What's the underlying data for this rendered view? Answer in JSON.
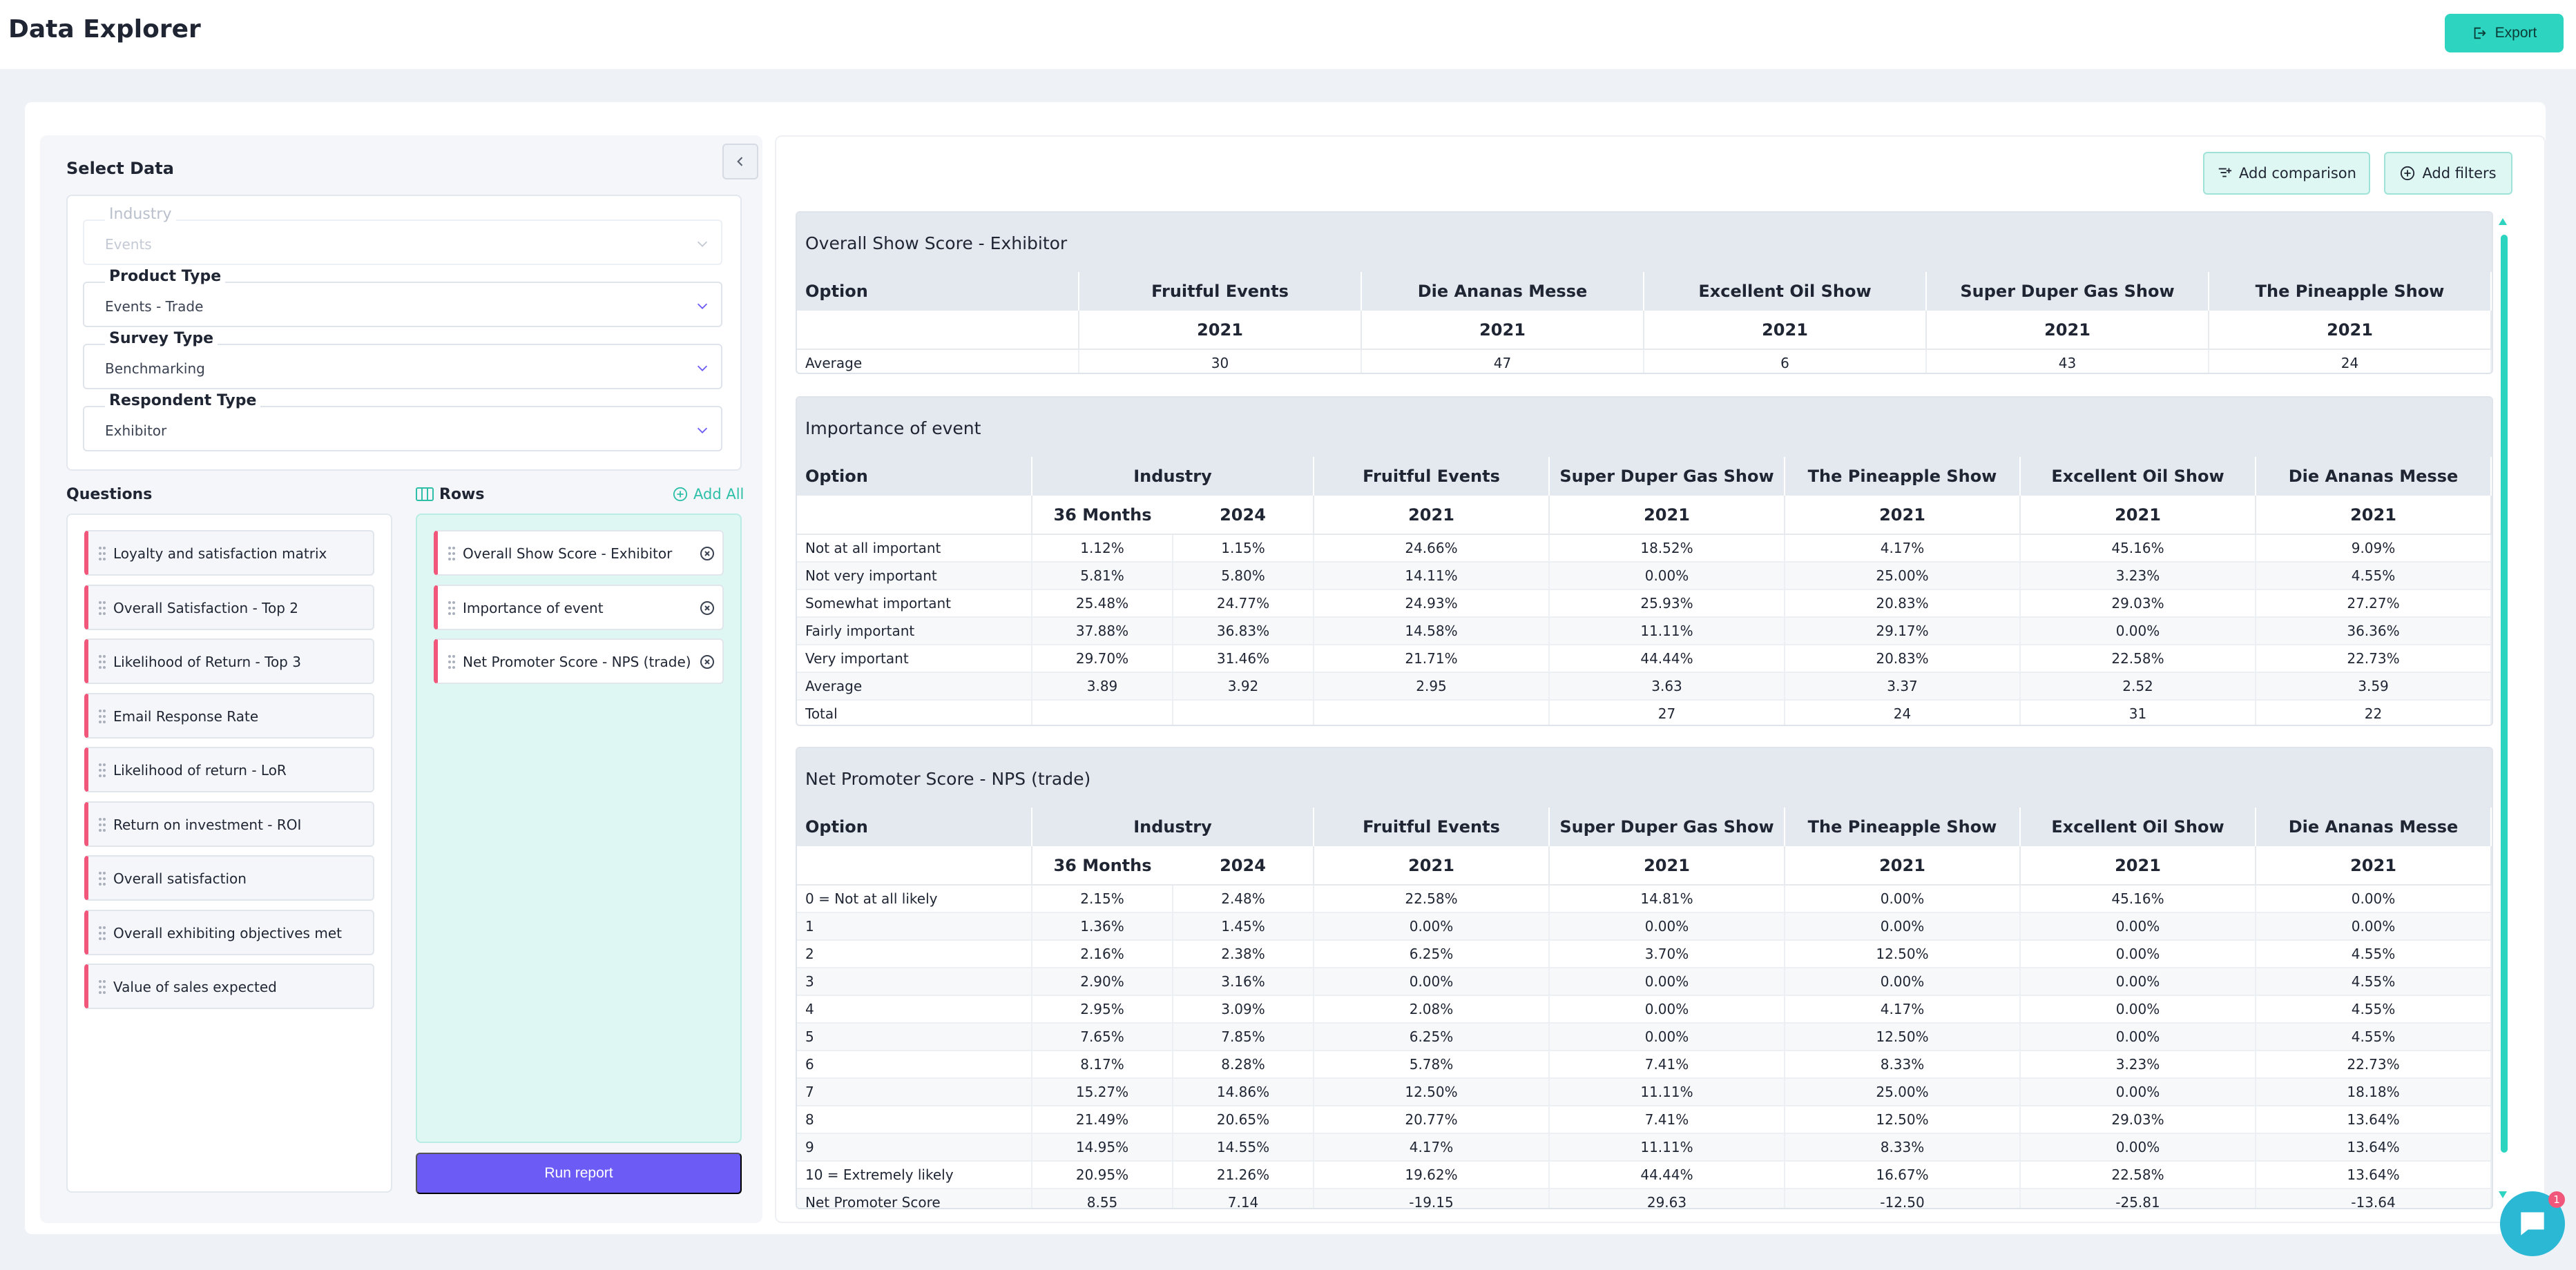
{
  "header": {
    "title": "Data Explorer",
    "export_label": "Export"
  },
  "select_data": {
    "title": "Select Data",
    "filters": [
      {
        "label": "Industry",
        "value": "Events",
        "disabled": true
      },
      {
        "label": "Product Type",
        "value": "Events - Trade"
      },
      {
        "label": "Survey Type",
        "value": "Benchmarking"
      },
      {
        "label": "Respondent Type",
        "value": "Exhibitor"
      }
    ]
  },
  "questions": {
    "heading": "Questions",
    "items": [
      "Loyalty and satisfaction matrix",
      "Overall Satisfaction - Top 2",
      "Likelihood of Return - Top 3",
      "Email Response Rate",
      "Likelihood of return - LoR",
      "Return on investment - ROI",
      "Overall satisfaction",
      "Overall exhibiting objectives met",
      "Value of sales expected"
    ]
  },
  "rows": {
    "heading": "Rows",
    "add_all_label": "Add All",
    "items": [
      "Overall Show Score - Exhibitor",
      "Importance of event",
      "Net Promoter Score - NPS (trade)"
    ],
    "run_label": "Run report"
  },
  "actions": {
    "add_comparison": "Add comparison",
    "add_filters": "Add filters"
  },
  "chat": {
    "badge": "1"
  },
  "colors": {
    "accent_teal": "#2dd4bf",
    "primary_purple": "#6c5cf5",
    "row_marker": "#f0577a"
  },
  "tables": {
    "overall": {
      "title": "Overall Show Score - Exhibitor",
      "option_label": "Option",
      "columns": [
        "Fruitful Events",
        "Die Ananas Messe",
        "Excellent Oil Show",
        "Super Duper Gas Show",
        "The Pineapple Show"
      ],
      "years": [
        "2021",
        "2021",
        "2021",
        "2021",
        "2021"
      ],
      "rows": [
        [
          "Average",
          "30",
          "47",
          "6",
          "43",
          "24"
        ]
      ]
    },
    "importance": {
      "title": "Importance of event",
      "option_label": "Option",
      "columns": [
        "Industry",
        "Fruitful Events",
        "Super Duper Gas Show",
        "The Pineapple Show",
        "Excellent Oil Show",
        "Die Ananas Messe"
      ],
      "subheads": [
        "36 Months",
        "2024",
        "2021",
        "2021",
        "2021",
        "2021",
        "2021"
      ],
      "rows": [
        [
          "Not at all important",
          "1.12%",
          "1.15%",
          "24.66%",
          "18.52%",
          "4.17%",
          "45.16%",
          "9.09%"
        ],
        [
          "Not very important",
          "5.81%",
          "5.80%",
          "14.11%",
          "0.00%",
          "25.00%",
          "3.23%",
          "4.55%"
        ],
        [
          "Somewhat important",
          "25.48%",
          "24.77%",
          "24.93%",
          "25.93%",
          "20.83%",
          "29.03%",
          "27.27%"
        ],
        [
          "Fairly important",
          "37.88%",
          "36.83%",
          "14.58%",
          "11.11%",
          "29.17%",
          "0.00%",
          "36.36%"
        ],
        [
          "Very important",
          "29.70%",
          "31.46%",
          "21.71%",
          "44.44%",
          "20.83%",
          "22.58%",
          "22.73%"
        ],
        [
          "Average",
          "3.89",
          "3.92",
          "2.95",
          "3.63",
          "3.37",
          "2.52",
          "3.59"
        ],
        [
          "Total",
          "",
          "",
          "",
          "27",
          "24",
          "31",
          "22"
        ]
      ]
    },
    "nps": {
      "title": "Net Promoter Score - NPS (trade)",
      "option_label": "Option",
      "columns": [
        "Industry",
        "Fruitful Events",
        "Super Duper Gas Show",
        "The Pineapple Show",
        "Excellent Oil Show",
        "Die Ananas Messe"
      ],
      "subheads": [
        "36 Months",
        "2024",
        "2021",
        "2021",
        "2021",
        "2021",
        "2021"
      ],
      "rows": [
        [
          "0 = Not at all likely",
          "2.15%",
          "2.48%",
          "22.58%",
          "14.81%",
          "0.00%",
          "45.16%",
          "0.00%"
        ],
        [
          "1",
          "1.36%",
          "1.45%",
          "0.00%",
          "0.00%",
          "0.00%",
          "0.00%",
          "0.00%"
        ],
        [
          "2",
          "2.16%",
          "2.38%",
          "6.25%",
          "3.70%",
          "12.50%",
          "0.00%",
          "4.55%"
        ],
        [
          "3",
          "2.90%",
          "3.16%",
          "0.00%",
          "0.00%",
          "0.00%",
          "0.00%",
          "4.55%"
        ],
        [
          "4",
          "2.95%",
          "3.09%",
          "2.08%",
          "0.00%",
          "4.17%",
          "0.00%",
          "4.55%"
        ],
        [
          "5",
          "7.65%",
          "7.85%",
          "6.25%",
          "0.00%",
          "12.50%",
          "0.00%",
          "4.55%"
        ],
        [
          "6",
          "8.17%",
          "8.28%",
          "5.78%",
          "7.41%",
          "8.33%",
          "3.23%",
          "22.73%"
        ],
        [
          "7",
          "15.27%",
          "14.86%",
          "12.50%",
          "11.11%",
          "25.00%",
          "0.00%",
          "18.18%"
        ],
        [
          "8",
          "21.49%",
          "20.65%",
          "20.77%",
          "7.41%",
          "12.50%",
          "29.03%",
          "13.64%"
        ],
        [
          "9",
          "14.95%",
          "14.55%",
          "4.17%",
          "11.11%",
          "8.33%",
          "0.00%",
          "13.64%"
        ],
        [
          "10 = Extremely likely",
          "20.95%",
          "21.26%",
          "19.62%",
          "44.44%",
          "16.67%",
          "22.58%",
          "13.64%"
        ],
        [
          "Net Promoter Score",
          "8.55",
          "7.14",
          "-19.15",
          "29.63",
          "-12.50",
          "-25.81",
          "-13.64"
        ]
      ]
    }
  }
}
